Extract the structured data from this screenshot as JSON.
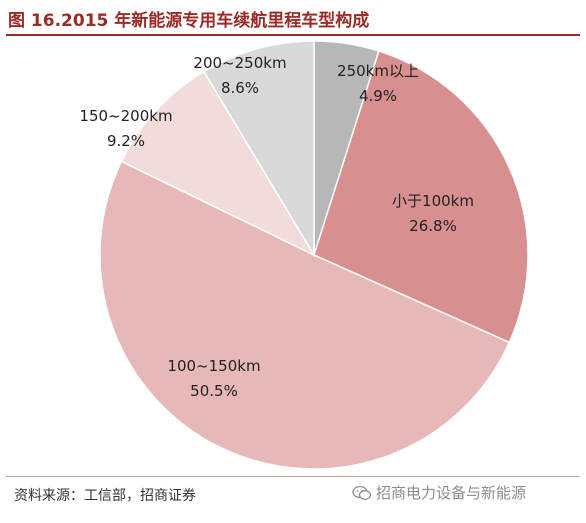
{
  "header": {
    "title": "图 16.2015 年新能源专用车续航里程车型构成"
  },
  "footer": {
    "source": "资料来源：工信部，招商证券",
    "watermark": "招商电力设备与新能源"
  },
  "chart_data": {
    "type": "pie",
    "title": "图 16.2015 年新能源专用车续航里程车型构成",
    "slices": [
      {
        "name": "250km以上",
        "label": "4.9%",
        "value": 4.9,
        "color": "#b7b7b7"
      },
      {
        "name": "小于100km",
        "label": "26.8%",
        "value": 26.8,
        "color": "#d78f8f"
      },
      {
        "name": "100~150km",
        "label": "50.5%",
        "value": 50.5,
        "color": "#e6b8b8"
      },
      {
        "name": "150~200km",
        "label": "9.2%",
        "value": 9.2,
        "color": "#f2dcdb"
      },
      {
        "name": "200~250km",
        "label": "8.6%",
        "value": 8.6,
        "color": "#d9d9d9"
      }
    ],
    "start_angle_deg": 0,
    "direction": "clockwise"
  }
}
